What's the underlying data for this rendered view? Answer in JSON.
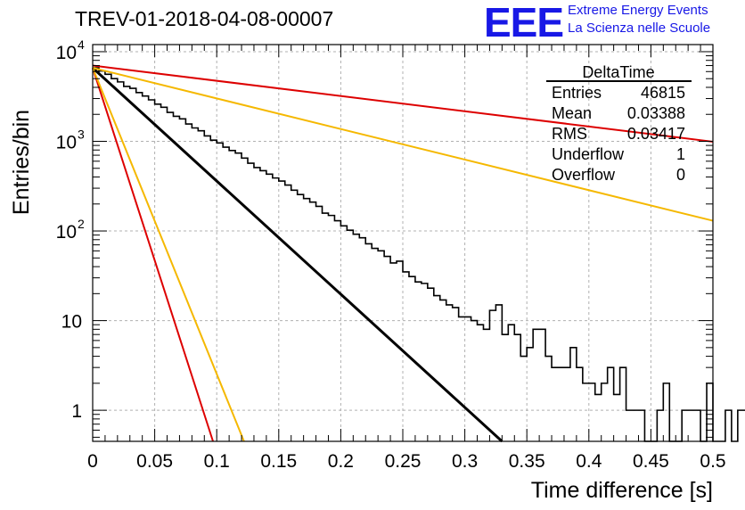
{
  "header": {
    "run_title": "TREV-01-2018-04-08-00007",
    "logo_text": "EEE",
    "logo_line1": "Extreme Energy Events",
    "logo_line2": "La Scienza nelle Scuole"
  },
  "colors": {
    "histogram": "#000000",
    "fit": "#000000",
    "red_curve": "#dd0000",
    "orange_curve": "#f5b800",
    "logo": "#1818e6",
    "grid": "#b0b0b0"
  },
  "stats": {
    "title": "DeltaTime",
    "rows": [
      {
        "label": "Entries",
        "value": "46815"
      },
      {
        "label": "Mean",
        "value": "0.03388"
      },
      {
        "label": "RMS",
        "value": "0.03417"
      },
      {
        "label": "Underflow",
        "value": "1"
      },
      {
        "label": "Overflow",
        "value": "0"
      }
    ]
  },
  "chart_data": {
    "type": "histogram",
    "xlabel": "Time difference [s]",
    "ylabel": "Entries/bin",
    "xlim": [
      0,
      0.5
    ],
    "ylim": [
      0.45,
      12000
    ],
    "yscale": "log",
    "grid": true,
    "x_ticks": [
      "0",
      "0.05",
      "0.1",
      "0.15",
      "0.2",
      "0.25",
      "0.3",
      "0.35",
      "0.4",
      "0.45",
      "0.5"
    ],
    "x_tick_values": [
      0,
      0.05,
      0.1,
      0.15,
      0.2,
      0.25,
      0.3,
      0.35,
      0.4,
      0.45,
      0.5
    ],
    "y_ticks": [
      {
        "value": 1,
        "base": "1",
        "exp": ""
      },
      {
        "value": 10,
        "base": "10",
        "exp": ""
      },
      {
        "value": 100,
        "base": "10",
        "exp": "2"
      },
      {
        "value": 1000,
        "base": "10",
        "exp": "3"
      },
      {
        "value": 10000,
        "base": "10",
        "exp": "4"
      }
    ],
    "histogram": {
      "bin_width": 0.005,
      "counts": [
        6600,
        6100,
        5600,
        5000,
        4600,
        4100,
        3900,
        3500,
        3200,
        2900,
        2600,
        2400,
        2100,
        1900,
        1780,
        1560,
        1410,
        1310,
        1150,
        1030,
        960,
        860,
        790,
        740,
        650,
        570,
        510,
        470,
        430,
        390,
        360,
        325,
        285,
        255,
        230,
        210,
        188,
        158,
        149,
        130,
        114,
        102,
        92,
        84,
        72,
        64,
        60,
        52,
        44,
        46,
        35,
        31,
        27,
        26,
        23,
        19,
        17,
        15,
        14,
        11,
        11,
        10,
        9,
        8,
        13,
        15,
        7,
        9,
        7,
        4,
        5,
        8,
        8,
        4,
        3,
        3,
        3,
        5,
        3,
        2,
        2,
        1.5,
        2,
        3,
        1.5,
        3,
        1,
        1,
        1,
        0.45,
        0.45,
        1,
        2,
        0.45,
        0.45,
        1,
        1,
        1,
        0.45,
        2,
        0.45,
        0.45,
        1,
        0.45,
        1,
        1,
        0.45,
        1,
        1,
        1
      ]
    },
    "curves": [
      {
        "role": "fit",
        "color": "#000000",
        "x": [
          0,
          0.33
        ],
        "y": [
          6600,
          0.45
        ]
      },
      {
        "role": "red_steep",
        "color": "#dd0000",
        "x": [
          0,
          0.097
        ],
        "y": [
          6600,
          0.45
        ]
      },
      {
        "role": "orange_steep",
        "color": "#f5b800",
        "x": [
          0,
          0.122
        ],
        "y": [
          6600,
          0.45
        ]
      },
      {
        "role": "orange_slow",
        "color": "#f5b800",
        "x": [
          0,
          0.5
        ],
        "y": [
          6600,
          130
        ]
      },
      {
        "role": "red_slow",
        "color": "#dd0000",
        "x": [
          0,
          0.5
        ],
        "y": [
          7000,
          990
        ]
      }
    ]
  }
}
